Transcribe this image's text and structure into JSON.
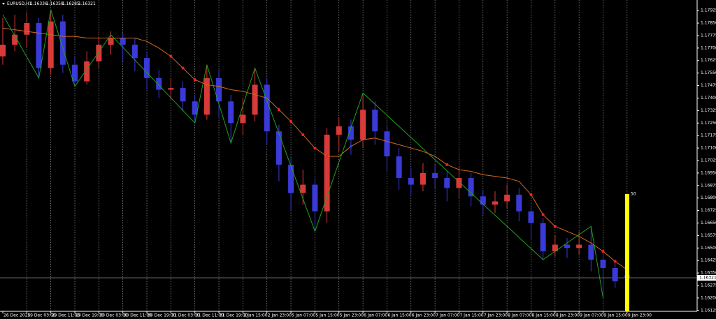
{
  "chart_data": {
    "type": "candlestick",
    "symbol": "EURUSD,H1",
    "header_values": [
      1.16336,
      1.16358,
      1.16285,
      1.16321
    ],
    "categories": [
      "26 Dec 2025",
      null,
      "29 Dec 03:00",
      null,
      "29 Dec 11:00",
      null,
      "29 Dec 19:00",
      null,
      "30 Dec 03:00",
      null,
      "30 Dec 11:00",
      null,
      "30 Dec 19:00",
      null,
      "31 Dec 03:00",
      null,
      "31 Dec 11:00",
      null,
      "31 Dec 19:00",
      null,
      "2 Jan 15:00",
      null,
      "2 Jan 23:00",
      null,
      "5 Jan 07:00",
      null,
      "5 Jan 15:00",
      null,
      "5 Jan 23:00",
      null,
      "6 Jan 07:00",
      null,
      "6 Jan 15:00",
      null,
      "6 Jan 23:00",
      null,
      "7 Jan 07:00",
      null,
      "7 Jan 15:00",
      null,
      "7 Jan 23:00",
      null,
      "8 Jan 07:00",
      null,
      "8 Jan 15:00",
      null,
      "8 Jan 23:00",
      null,
      "9 Jan 07:00",
      null,
      "9 Jan 15:00",
      null,
      "9 Jan 23:00"
    ],
    "open": [
      1.1765,
      1.1772,
      1.1778,
      1.1785,
      1.1758,
      1.1786,
      1.176,
      1.175,
      1.1762,
      1.1772,
      1.1776,
      1.1772,
      1.1764,
      1.1752,
      1.1745,
      1.1746,
      1.1738,
      1.173,
      1.1752,
      1.1738,
      1.1725,
      1.173,
      1.1748,
      1.172,
      1.17,
      1.1683,
      1.1688,
      1.1672,
      1.1718,
      1.1723,
      1.1715,
      1.1733,
      1.172,
      1.1705,
      1.1692,
      1.1688,
      1.1695,
      1.1692,
      1.1686,
      1.1692,
      1.1681,
      1.1676,
      1.1678,
      1.1682,
      1.1672,
      1.1665,
      1.1648,
      1.1652,
      1.165,
      1.1652,
      1.1643,
      1.1638,
      1.16336
    ],
    "high": [
      1.1788,
      1.179,
      1.1791,
      1.1788,
      1.1793,
      1.179,
      1.1765,
      1.1768,
      1.1777,
      1.178,
      1.1779,
      1.1776,
      1.1768,
      1.1757,
      1.1752,
      1.175,
      1.1742,
      1.176,
      1.1757,
      1.1742,
      1.174,
      1.1758,
      1.1752,
      1.1724,
      1.1705,
      1.1697,
      1.1692,
      1.1722,
      1.1728,
      1.1727,
      1.1743,
      1.1738,
      1.1724,
      1.171,
      1.1698,
      1.1701,
      1.17,
      1.1696,
      1.1699,
      1.1695,
      1.1685,
      1.1684,
      1.1688,
      1.1686,
      1.1676,
      1.1668,
      1.1658,
      1.1656,
      1.166,
      1.1663,
      1.1647,
      1.1642,
      1.16358
    ],
    "low": [
      1.176,
      1.1768,
      1.177,
      1.1752,
      1.1754,
      1.1755,
      1.1747,
      1.1748,
      1.1758,
      1.1766,
      1.1762,
      1.1756,
      1.1745,
      1.174,
      1.1739,
      1.1732,
      1.1725,
      1.1727,
      1.1728,
      1.1713,
      1.1718,
      1.1726,
      1.1712,
      1.169,
      1.1672,
      1.1676,
      1.166,
      1.1665,
      1.1708,
      1.1706,
      1.171,
      1.1712,
      1.1696,
      1.1685,
      1.1682,
      1.1684,
      1.1686,
      1.1678,
      1.168,
      1.1675,
      1.167,
      1.1671,
      1.1674,
      1.1666,
      1.1655,
      1.1643,
      1.1645,
      1.1644,
      1.1646,
      1.1636,
      1.162,
      1.1626,
      1.16285
    ],
    "close": [
      1.1772,
      1.1778,
      1.1785,
      1.1758,
      1.1786,
      1.176,
      1.175,
      1.1762,
      1.1772,
      1.1776,
      1.1772,
      1.1764,
      1.1752,
      1.1745,
      1.1746,
      1.1738,
      1.173,
      1.1752,
      1.1738,
      1.1725,
      1.173,
      1.1748,
      1.172,
      1.17,
      1.1683,
      1.1688,
      1.1672,
      1.1718,
      1.1723,
      1.1715,
      1.1733,
      1.172,
      1.1705,
      1.1692,
      1.1688,
      1.1695,
      1.1692,
      1.1686,
      1.1692,
      1.1681,
      1.1676,
      1.1678,
      1.1682,
      1.1672,
      1.1665,
      1.1648,
      1.1652,
      1.165,
      1.1652,
      1.1643,
      1.1638,
      1.163,
      1.16321
    ],
    "ma": [
      1.1782,
      1.1781,
      1.178,
      1.1779,
      1.1778,
      1.1777,
      1.1777,
      1.1776,
      1.1776,
      1.1776,
      1.1776,
      1.1776,
      1.1774,
      1.177,
      1.1765,
      1.1758,
      1.1751,
      1.1748,
      1.1747,
      1.1745,
      1.1744,
      1.1742,
      1.174,
      1.1733,
      1.1726,
      1.1718,
      1.171,
      1.1705,
      1.1705,
      1.1711,
      1.1715,
      1.1716,
      1.1714,
      1.1712,
      1.171,
      1.1708,
      1.1705,
      1.17,
      1.1697,
      1.1696,
      1.1694,
      1.1693,
      1.1692,
      1.169,
      1.1682,
      1.167,
      1.1663,
      1.166,
      1.1657,
      1.1653,
      1.1648,
      1.1642,
      1.1637
    ],
    "zigzag": {
      "candle": [
        0,
        3,
        4,
        6,
        9,
        16,
        17,
        19,
        21,
        26,
        30,
        45,
        49,
        50
      ],
      "price": [
        1.179,
        1.1752,
        1.1793,
        1.1747,
        1.1778,
        1.1725,
        1.176,
        1.1713,
        1.1758,
        1.166,
        1.1743,
        1.1643,
        1.1663,
        1.162
      ]
    },
    "current_price": 1.16321,
    "indicator_label": 50,
    "up_color": "#d83a3a",
    "down_color": "#3a3ad8",
    "ma_color": "#d2691e",
    "zigzag_color": "#1fa01f",
    "ylim": [
      1.1612,
      1.1798
    ],
    "yticks": [
      1.17925,
      {
        "value": 1.1785,
        "label": "1.17850"
      },
      1.17775,
      {
        "value": 1.177,
        "label": "1.17700"
      },
      1.17625,
      {
        "value": 1.1755,
        "label": "1.17550"
      },
      1.17475,
      {
        "value": 1.174,
        "label": "1.17400"
      },
      1.17325,
      {
        "value": 1.1725,
        "label": "1.17250"
      },
      1.17175,
      {
        "value": 1.171,
        "label": "1.17100"
      },
      1.17025,
      {
        "value": 1.1695,
        "label": "1.16950"
      },
      1.16875,
      {
        "value": 1.168,
        "label": "1.16800"
      },
      1.16725,
      {
        "value": 1.1665,
        "label": "1.16650"
      },
      1.16575,
      {
        "value": 1.165,
        "label": "1.16500"
      },
      1.16425,
      {
        "value": 1.1635,
        "label": "1.16350"
      },
      1.16275,
      {
        "value": 1.162,
        "label": "1.16200"
      },
      1.16125
    ]
  }
}
